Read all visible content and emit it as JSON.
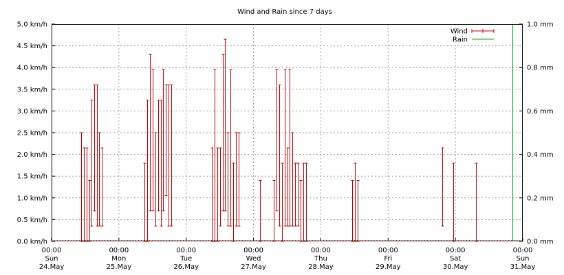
{
  "chart_data": {
    "type": "bar",
    "title": "Wind and Rain since 7 days",
    "x_range": [
      "Sun 24.May 00:00",
      "Sun 31.May 00:00"
    ],
    "x_ticks": [
      {
        "time": "00:00",
        "day": "Sun",
        "date": "24.May"
      },
      {
        "time": "00:00",
        "day": "Mon",
        "date": "25.May"
      },
      {
        "time": "00:00",
        "day": "Tue",
        "date": "26.May"
      },
      {
        "time": "00:00",
        "day": "Wed",
        "date": "27.May"
      },
      {
        "time": "00:00",
        "day": "Thu",
        "date": "28.May"
      },
      {
        "time": "00:00",
        "day": "Fri",
        "date": "29.May"
      },
      {
        "time": "00:00",
        "day": "Sat",
        "date": "30.May"
      },
      {
        "time": "00:00",
        "day": "Sun",
        "date": "31.May"
      }
    ],
    "y_left": {
      "ylim": [
        0,
        5
      ],
      "ticks": [
        "0.0 km/h",
        "0.5 km/h",
        "1.0 km/h",
        "1.5 km/h",
        "2.0 km/h",
        "2.5 km/h",
        "3.0 km/h",
        "3.5 km/h",
        "4.0 km/h",
        "4.5 km/h",
        "5.0 km/h"
      ]
    },
    "y_right": {
      "ylim": [
        0,
        1
      ],
      "ticks": [
        "0.0 mm",
        "0.2 mm",
        "0.4 mm",
        "0.6 mm",
        "0.8 mm",
        "1.0 mm"
      ]
    },
    "grid": true,
    "legend_position": "top-right",
    "legend": [
      {
        "name": "Wind",
        "color": "#c00000"
      },
      {
        "name": "Rain",
        "color": "#00b000"
      }
    ],
    "series": [
      {
        "name": "Wind",
        "color": "#c00000",
        "note": "x in days since Sun 24.May 00:00; lo = min, hi = max wind (km/h)",
        "points": [
          {
            "x": 0.44,
            "lo": 0,
            "hi": 2.5
          },
          {
            "x": 0.48,
            "lo": 0,
            "hi": 2.15
          },
          {
            "x": 0.52,
            "lo": 0,
            "hi": 2.15
          },
          {
            "x": 0.56,
            "lo": 0,
            "hi": 1.4
          },
          {
            "x": 0.59,
            "lo": 0.35,
            "hi": 3.25
          },
          {
            "x": 0.63,
            "lo": 0.7,
            "hi": 3.6
          },
          {
            "x": 0.67,
            "lo": 0.35,
            "hi": 3.6
          },
          {
            "x": 0.71,
            "lo": 0.35,
            "hi": 2.5
          },
          {
            "x": 0.75,
            "lo": 0.35,
            "hi": 2.15
          },
          {
            "x": 1.38,
            "lo": 0,
            "hi": 1.8
          },
          {
            "x": 1.42,
            "lo": 0,
            "hi": 3.25
          },
          {
            "x": 1.46,
            "lo": 0.7,
            "hi": 4.3
          },
          {
            "x": 1.5,
            "lo": 0.7,
            "hi": 3.95
          },
          {
            "x": 1.54,
            "lo": 0.35,
            "hi": 2.5
          },
          {
            "x": 1.58,
            "lo": 0.7,
            "hi": 3.25
          },
          {
            "x": 1.62,
            "lo": 0.35,
            "hi": 3.25
          },
          {
            "x": 1.66,
            "lo": 0.7,
            "hi": 3.95
          },
          {
            "x": 1.7,
            "lo": 1.05,
            "hi": 3.6
          },
          {
            "x": 1.74,
            "lo": 0.35,
            "hi": 3.6
          },
          {
            "x": 1.78,
            "lo": 0.35,
            "hi": 3.6
          },
          {
            "x": 2.38,
            "lo": 0,
            "hi": 2.15
          },
          {
            "x": 2.42,
            "lo": 0,
            "hi": 3.95
          },
          {
            "x": 2.46,
            "lo": 0,
            "hi": 2.15
          },
          {
            "x": 2.5,
            "lo": 0.35,
            "hi": 2.15
          },
          {
            "x": 2.54,
            "lo": 0.7,
            "hi": 4.3
          },
          {
            "x": 2.58,
            "lo": 0.7,
            "hi": 4.65
          },
          {
            "x": 2.62,
            "lo": 0.35,
            "hi": 2.5
          },
          {
            "x": 2.66,
            "lo": 0.35,
            "hi": 3.95
          },
          {
            "x": 2.7,
            "lo": 0,
            "hi": 1.8
          },
          {
            "x": 2.74,
            "lo": 0.35,
            "hi": 2.5
          },
          {
            "x": 2.78,
            "lo": 0.35,
            "hi": 2.5
          },
          {
            "x": 3.1,
            "lo": 0,
            "hi": 1.4
          },
          {
            "x": 3.3,
            "lo": 0,
            "hi": 1.4
          },
          {
            "x": 3.34,
            "lo": 0.7,
            "hi": 3.95
          },
          {
            "x": 3.38,
            "lo": 0.35,
            "hi": 3.6
          },
          {
            "x": 3.42,
            "lo": 0,
            "hi": 1.8
          },
          {
            "x": 3.46,
            "lo": 0.35,
            "hi": 3.95
          },
          {
            "x": 3.5,
            "lo": 0.35,
            "hi": 2.15
          },
          {
            "x": 3.54,
            "lo": 0.35,
            "hi": 3.95
          },
          {
            "x": 3.58,
            "lo": 0.35,
            "hi": 2.5
          },
          {
            "x": 3.62,
            "lo": 0.35,
            "hi": 1.8
          },
          {
            "x": 3.66,
            "lo": 0.35,
            "hi": 1.8
          },
          {
            "x": 3.7,
            "lo": 0,
            "hi": 1.4
          },
          {
            "x": 3.74,
            "lo": 0,
            "hi": 1.8
          },
          {
            "x": 3.78,
            "lo": 0,
            "hi": 1.8
          },
          {
            "x": 4.47,
            "lo": 0,
            "hi": 1.4
          },
          {
            "x": 4.51,
            "lo": 0,
            "hi": 1.8
          },
          {
            "x": 4.55,
            "lo": 0,
            "hi": 1.4
          },
          {
            "x": 5.8,
            "lo": 0.35,
            "hi": 2.15
          },
          {
            "x": 5.97,
            "lo": 0,
            "hi": 1.8
          },
          {
            "x": 6.3,
            "lo": 0,
            "hi": 1.8
          }
        ]
      },
      {
        "name": "Rain",
        "color": "#00b000",
        "note": "x in days since Sun 24.May 00:00; value in mm",
        "points": [
          {
            "x": 6.85,
            "value": 1.0
          }
        ]
      }
    ]
  }
}
